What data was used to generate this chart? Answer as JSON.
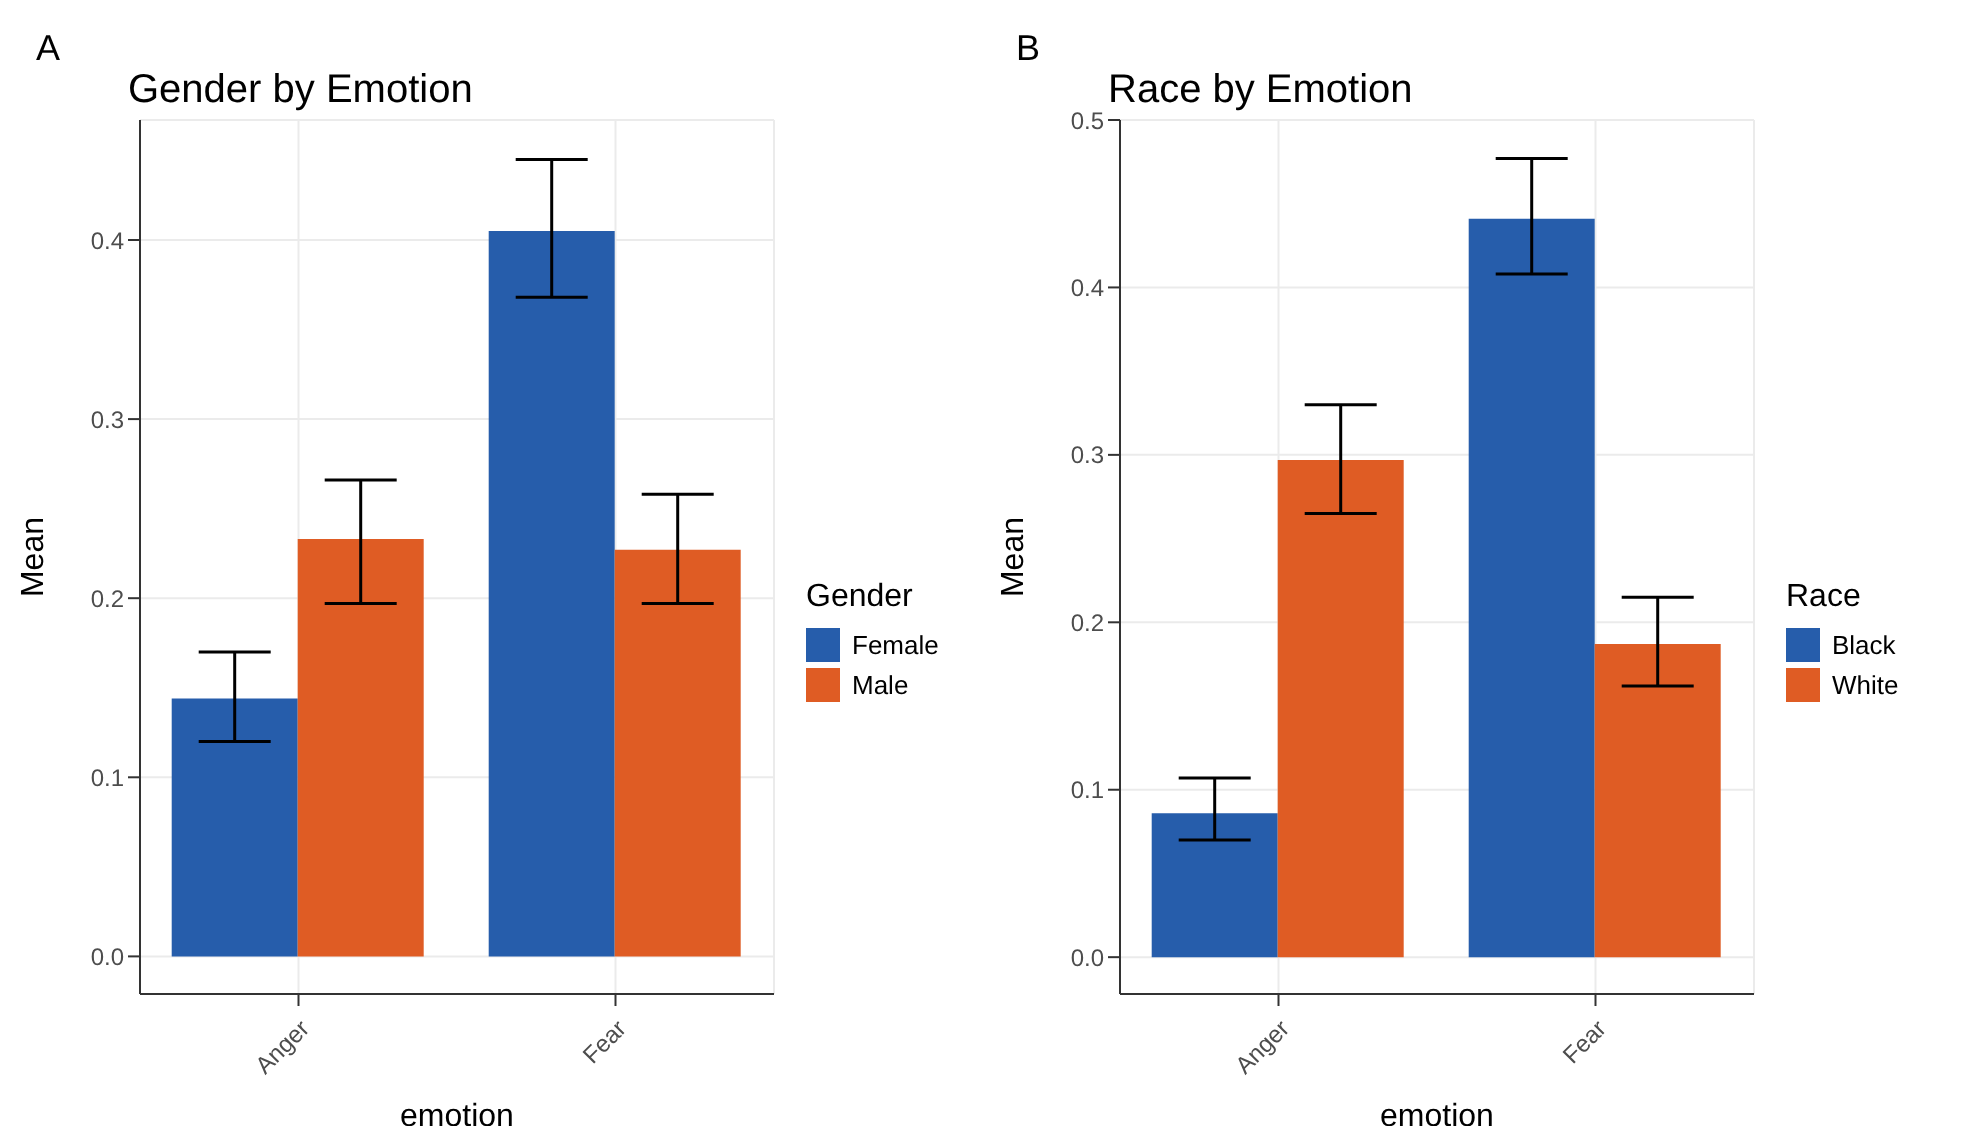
{
  "chart_data": [
    {
      "type": "bar",
      "annotations": [
        "A"
      ],
      "title": "Gender by Emotion",
      "xlabel": "emotion",
      "ylabel": "Mean",
      "legend_title": "Gender",
      "legend": "right",
      "grid": true,
      "categories": [
        "Anger",
        "Fear"
      ],
      "ylim": [
        -0.021,
        0.467
      ],
      "yticks": [
        {
          "value": 0,
          "label": "0.0"
        },
        0.1,
        0.2,
        0.3,
        0.4
      ],
      "series": [
        {
          "name": "Female",
          "color": "#265dab",
          "values": [
            0.144,
            0.405
          ],
          "errors": [
            [
              0.12,
              0.17
            ],
            [
              0.368,
              0.445
            ]
          ]
        },
        {
          "name": "Male",
          "color": "#df5c24",
          "values": [
            0.233,
            0.227
          ],
          "errors": [
            [
              0.197,
              0.266
            ],
            [
              0.197,
              0.258
            ]
          ]
        }
      ]
    },
    {
      "type": "bar",
      "annotations": [
        "B"
      ],
      "title": "Race by Emotion",
      "xlabel": "emotion",
      "ylabel": "Mean",
      "legend_title": "Race",
      "legend": "right",
      "grid": true,
      "categories": [
        "Anger",
        "Fear"
      ],
      "ylim": [
        -0.022,
        0.5
      ],
      "yticks": [
        {
          "value": 0,
          "label": "0.0"
        },
        0.1,
        0.2,
        0.3,
        0.4,
        0.5
      ],
      "series": [
        {
          "name": "Black",
          "color": "#265dab",
          "values": [
            0.086,
            0.441
          ],
          "errors": [
            [
              0.07,
              0.107
            ],
            [
              0.408,
              0.477
            ]
          ]
        },
        {
          "name": "White",
          "color": "#df5c24",
          "values": [
            0.297,
            0.187
          ],
          "errors": [
            [
              0.265,
              0.33
            ],
            [
              0.162,
              0.215
            ]
          ]
        }
      ]
    }
  ]
}
